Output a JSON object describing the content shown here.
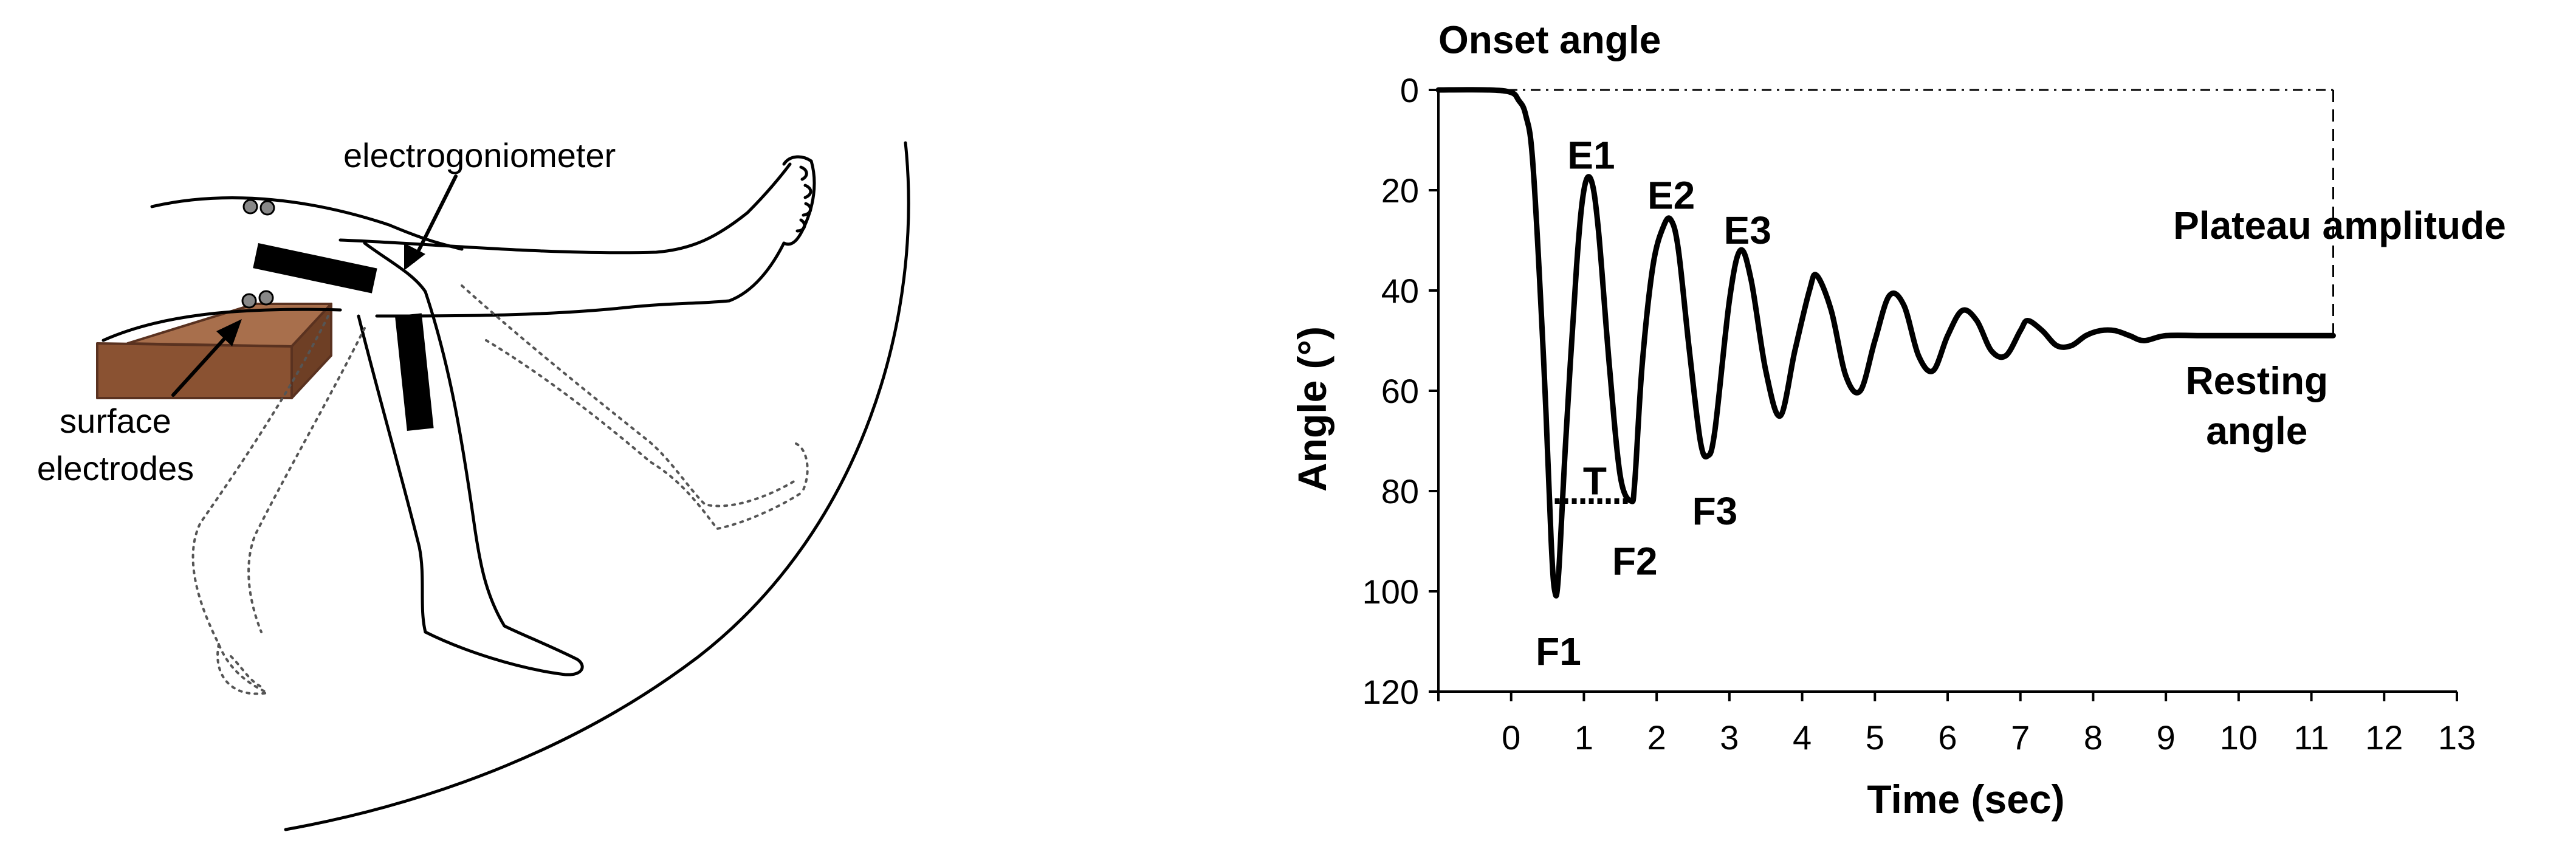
{
  "illustration": {
    "labels": {
      "electrogoniometer": "electrogoniometer",
      "surface_electrodes_line1": "surface",
      "surface_electrodes_line2": "electrodes"
    },
    "colors": {
      "line": "#000000",
      "dotted_leg": "#555555",
      "platform_top": "#a86f4c",
      "platform_side": "#8a5232",
      "sensor": "#000000"
    }
  },
  "chart_data": {
    "type": "line",
    "title": "",
    "xlabel": "Time (sec)",
    "ylabel": "Angle (°)",
    "xlim": [
      -1.0,
      13.0
    ],
    "ylim": [
      0,
      120
    ],
    "y_inverted": true,
    "x_ticks": [
      0,
      1,
      2,
      3,
      4,
      5,
      6,
      7,
      8,
      9,
      10,
      11,
      12,
      13
    ],
    "y_ticks": [
      0,
      20,
      40,
      60,
      80,
      100,
      120
    ],
    "grid": false,
    "legend": "none",
    "series": [
      {
        "color": "#000000",
        "x": [
          -1.0,
          -0.3,
          0.0,
          0.1,
          0.2,
          0.3,
          0.45,
          0.55,
          0.6,
          0.65,
          0.75,
          0.9,
          1.0,
          1.1,
          1.2,
          1.35,
          1.5,
          1.65,
          1.7,
          1.8,
          1.95,
          2.1,
          2.2,
          2.3,
          2.45,
          2.6,
          2.7,
          2.8,
          3.0,
          3.15,
          3.3,
          3.5,
          3.7,
          3.9,
          4.1,
          4.2,
          4.4,
          4.6,
          4.8,
          5.0,
          5.2,
          5.4,
          5.6,
          5.8,
          6.0,
          6.2,
          6.4,
          6.6,
          6.8,
          7.0,
          7.1,
          7.3,
          7.5,
          7.7,
          7.9,
          8.1,
          8.3,
          8.5,
          8.7,
          9.0,
          9.5,
          10.0,
          10.5,
          11.0,
          11.3
        ],
        "y": [
          0,
          0,
          0.5,
          2,
          5,
          15,
          55,
          90,
          100,
          97,
          70,
          35,
          20,
          18,
          28,
          55,
          77,
          82,
          78,
          55,
          35,
          27,
          26,
          32,
          52,
          70,
          73,
          68,
          42,
          32,
          38,
          56,
          65,
          52,
          40,
          37,
          44,
          57,
          60,
          50,
          41,
          43,
          53,
          56,
          49,
          44,
          46,
          52,
          53,
          48,
          46,
          48,
          51,
          51,
          49,
          48,
          48,
          49,
          50,
          49,
          49,
          49,
          49,
          49,
          49
        ]
      }
    ],
    "reference_lines": [
      {
        "style": "dash-dot",
        "from": [
          -1.0,
          0
        ],
        "to": [
          11.3,
          0
        ]
      },
      {
        "style": "dashed",
        "from": [
          11.3,
          0
        ],
        "to": [
          11.3,
          49
        ]
      },
      {
        "style": "dotted",
        "from": [
          0.6,
          82
        ],
        "to": [
          1.65,
          82
        ]
      }
    ],
    "annotations": [
      {
        "text": "Onset angle",
        "x": -1.0,
        "y": -10,
        "anchor": "start"
      },
      {
        "text": "E1",
        "x": 1.1,
        "y": 13,
        "anchor": "middle"
      },
      {
        "text": "E2",
        "x": 2.2,
        "y": 21,
        "anchor": "middle"
      },
      {
        "text": "E3",
        "x": 3.25,
        "y": 28,
        "anchor": "middle"
      },
      {
        "text": "F1",
        "x": 0.65,
        "y": 112,
        "anchor": "middle"
      },
      {
        "text": "F2",
        "x": 1.7,
        "y": 94,
        "anchor": "middle"
      },
      {
        "text": "F3",
        "x": 2.8,
        "y": 84,
        "anchor": "middle"
      },
      {
        "text": "T",
        "x": 1.15,
        "y": 78,
        "anchor": "middle"
      },
      {
        "text": "Plateau amplitude",
        "x": 9.1,
        "y": 27,
        "anchor": "start"
      },
      {
        "text": "Resting",
        "x": 10.25,
        "y": 58,
        "anchor": "middle"
      },
      {
        "text": "angle",
        "x": 10.25,
        "y": 68,
        "anchor": "middle"
      }
    ]
  }
}
